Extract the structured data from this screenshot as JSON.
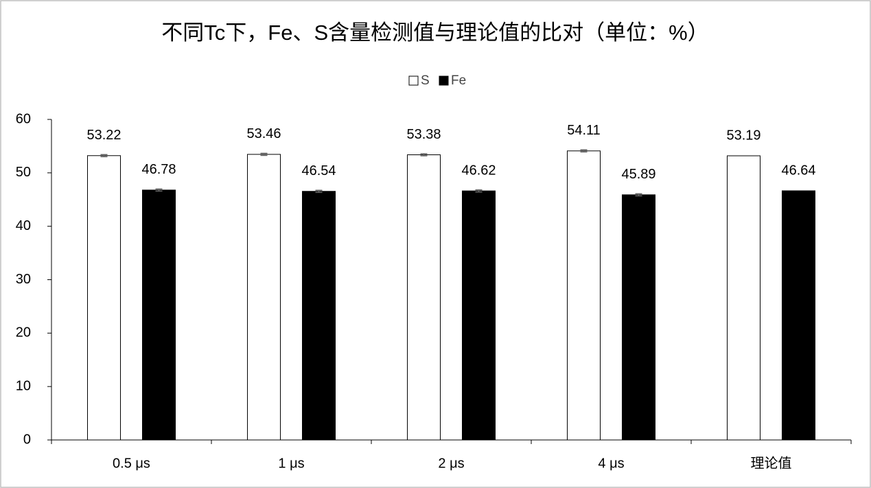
{
  "chart_data": {
    "type": "bar",
    "title": "不同Tc下，Fe、S含量检测值与理论值的比对（单位：%）",
    "categories": [
      "0.5 μs",
      "1 μs",
      "2 μs",
      "4 μs",
      "理论值"
    ],
    "series": [
      {
        "name": "S",
        "color": "#ffffff",
        "values": [
          53.22,
          53.46,
          53.38,
          54.11,
          53.19
        ],
        "errors": [
          0.2,
          0.2,
          0.2,
          0.2,
          null
        ]
      },
      {
        "name": "Fe",
        "color": "#000000",
        "values": [
          46.78,
          46.54,
          46.62,
          45.89,
          46.64
        ],
        "errors": [
          0.2,
          0.2,
          0.2,
          0.2,
          null
        ]
      }
    ],
    "ylim": [
      0,
      60
    ],
    "yticks": [
      0,
      10,
      20,
      30,
      40,
      50,
      60
    ],
    "grid": false,
    "legend": "top"
  }
}
